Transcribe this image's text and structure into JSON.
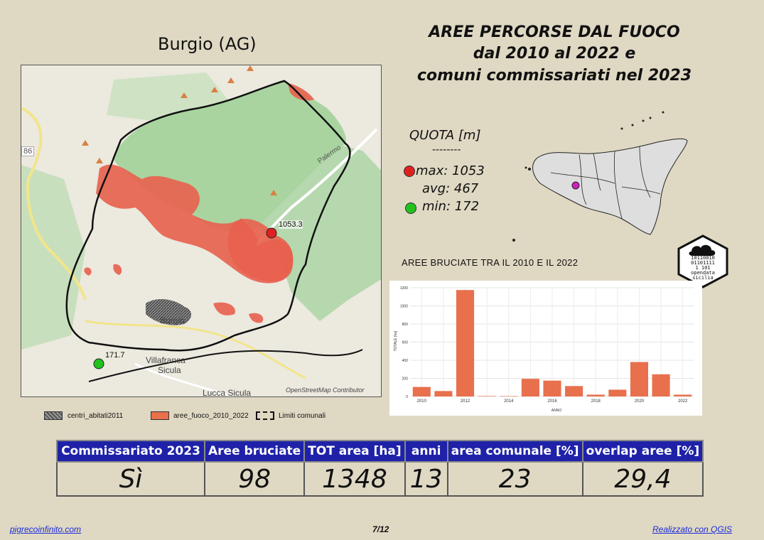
{
  "comune_title": "Burgio (AG)",
  "main_title": [
    "AREE PERCORSE DAL FUOCO",
    "dal 2010 al 2022 e",
    "comuni commissariati nel 2023"
  ],
  "quota": {
    "header": "QUOTA [m]",
    "separator": "--------",
    "max_label": "max: 1053",
    "avg_label": "avg: 467",
    "min_label": "min: 172",
    "max_color": "#e02020",
    "min_color": "#22c21e"
  },
  "map": {
    "labels": {
      "max_point": "1053.3",
      "min_point": "171.7",
      "town": "Burgio",
      "villafranca_1": "Villafranca",
      "villafranca_2": "Sicula",
      "lucca": "Lucca Sicula",
      "road": "Palermo",
      "road_number": "86",
      "attribution": "OpenStreetMap Contributor"
    },
    "colors": {
      "fire": "#e8604e",
      "forest": "#a9d4a0",
      "boundary": "#111111"
    }
  },
  "legend": {
    "items": [
      {
        "label": "centri_abitati2011",
        "icon": "hatched-swatch"
      },
      {
        "label": "aree_fuoco_2010_2022",
        "icon": "fire-swatch"
      },
      {
        "label": "Limiti comunali",
        "icon": "dashed-boundary-swatch"
      }
    ]
  },
  "logo": {
    "lines": [
      "10110010",
      "01101111",
      "1 101",
      "opendata",
      "sicilia"
    ]
  },
  "chart_title": "AREE BRUCIATE TRA IL 2010 E IL 2022",
  "chart_data": {
    "type": "bar",
    "title": "AREE BRUCIATE TRA IL 2010 E IL 2022",
    "xlabel": "ANNO",
    "ylabel": "TOTALE [ha]",
    "categories": [
      2010,
      2011,
      2012,
      2013,
      2014,
      2015,
      2016,
      2017,
      2018,
      2019,
      2020,
      2021,
      2022
    ],
    "values": [
      105,
      60,
      1175,
      5,
      4,
      195,
      175,
      115,
      20,
      75,
      380,
      245,
      20
    ],
    "ylim": [
      0,
      1200
    ],
    "yticks": [
      0,
      200,
      400,
      600,
      800,
      1000,
      1200
    ],
    "xticks": [
      2010,
      2012,
      2014,
      2016,
      2018,
      2020,
      2022
    ],
    "bar_color": "#e8704d",
    "grid": true
  },
  "stats": {
    "headers": [
      "Commissariato 2023",
      "Aree bruciate",
      "TOT area [ha]",
      "anni",
      "area comunale [%]",
      "overlap aree [%]"
    ],
    "values": [
      "Sì",
      "98",
      "1348",
      "13",
      "23",
      "29,4"
    ]
  },
  "footer": {
    "left": "pigrecoinfinito.com",
    "page": "7/12",
    "right": "Realizzato con QGIS"
  }
}
